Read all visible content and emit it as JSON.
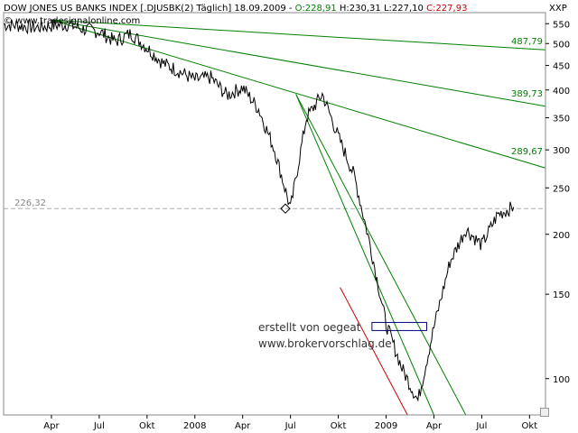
{
  "header": {
    "title": "DOW JONES US BANKS INDEX [.DJUSBK(2)  Täglich] 18.09.2009 -",
    "open": "O:228,91",
    "high_low": "H:230,31 L:227,10",
    "close": "C:227,93",
    "copyright": "© www.tradesignalonline.com",
    "scale_label": "XXP"
  },
  "watermark": {
    "line1": "erstellt von oegeat",
    "line2": "www.brokervorschlag.de"
  },
  "colors": {
    "price": "#000000",
    "fan": "#008000",
    "red_line": "#cc0000",
    "box": "#000080",
    "grid": "#aaaaaa"
  },
  "chart_data": {
    "type": "line",
    "y_scale": "log",
    "ylim": [
      84,
      580
    ],
    "y_ticks": [
      "550",
      "500",
      "450",
      "400",
      "350",
      "300",
      "250",
      "200",
      "150",
      "100"
    ],
    "x_ticks": [
      "Apr",
      "Jul",
      "Okt",
      "2008",
      "Apr",
      "Jul",
      "Okt",
      "2009",
      "Apr",
      "Jul",
      "Okt"
    ],
    "reference_level": {
      "label": "226,32",
      "value": 226.32
    },
    "fan_labels": [
      "487,79",
      "389,73",
      "289,67"
    ],
    "series": [
      {
        "x": [
          "2007-01",
          "2007-02",
          "2007-03",
          "2007-04",
          "2007-05",
          "2007-06",
          "2007-07",
          "2007-08",
          "2007-09",
          "2007-10",
          "2007-11",
          "2007-12",
          "2008-01",
          "2008-02",
          "2008-03",
          "2008-04",
          "2008-05",
          "2008-06",
          "2008-07",
          "2008-08",
          "2008-09",
          "2008-10",
          "2008-11",
          "2008-12",
          "2009-01",
          "2009-02",
          "2009-03",
          "2009-04",
          "2009-05",
          "2009-06",
          "2009-07",
          "2009-08",
          "2009-09"
        ],
        "values": [
          548,
          545,
          540,
          545,
          548,
          536,
          530,
          505,
          525,
          490,
          455,
          438,
          420,
          425,
          390,
          405,
          365,
          300,
          226,
          350,
          392,
          320,
          265,
          190,
          130,
          105,
          90,
          128,
          175,
          205,
          190,
          220,
          228
        ]
      }
    ]
  }
}
